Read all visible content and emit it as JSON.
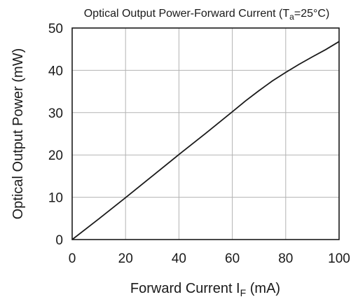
{
  "chart_data": {
    "type": "line",
    "title": {
      "prefix": "Optical Output Power-Forward Current (T",
      "sub": "a",
      "suffix": "=25°C)"
    },
    "xlabel": {
      "prefix": "Forward Current  I",
      "sub": "F",
      "suffix": " (mA)"
    },
    "ylabel": "Optical Output Power (mW)",
    "xlim": [
      0,
      100
    ],
    "ylim": [
      0,
      50
    ],
    "xticks": [
      "0",
      "20",
      "40",
      "60",
      "80",
      "100"
    ],
    "yticks": [
      "0",
      "10",
      "20",
      "30",
      "40",
      "50"
    ],
    "grid": true,
    "series": [
      {
        "x": [
          0,
          10,
          20,
          30,
          40,
          50,
          60,
          65,
          70,
          75,
          80,
          85,
          90,
          95,
          100
        ],
        "y": [
          0,
          4.9,
          9.9,
          15.0,
          20.1,
          25.1,
          30.2,
          32.8,
          35.2,
          37.5,
          39.5,
          41.4,
          43.2,
          44.9,
          46.8
        ],
        "color": "#1a1a1a"
      }
    ]
  }
}
